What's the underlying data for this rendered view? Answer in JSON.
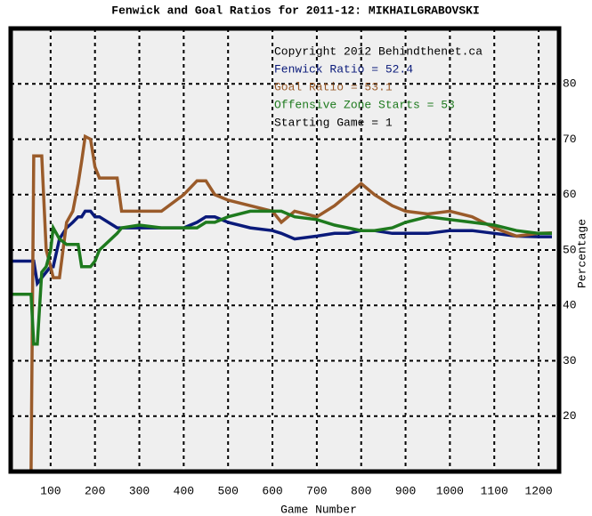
{
  "chart_data": {
    "type": "line",
    "title": "Fenwick and Goal Ratios for 2011-12: MIKHAILGRABOVSKI",
    "x_label": "Game Number",
    "y_label": "Percentage",
    "annotations": [
      "Copyright 2012 Behindthenet.ca",
      "Starting Game = 1"
    ],
    "x": [
      10,
      56,
      62,
      70,
      80,
      90,
      100,
      106,
      120,
      136,
      150,
      162,
      170,
      178,
      190,
      200,
      210,
      250,
      260,
      300,
      350,
      400,
      430,
      450,
      470,
      500,
      550,
      600,
      620,
      650,
      700,
      740,
      770,
      800,
      830,
      870,
      900,
      950,
      1000,
      1050,
      1100,
      1150,
      1200,
      1230
    ],
    "series": [
      {
        "name": "Fenwick Ratio = 52.4",
        "color": "#0a1a7a",
        "values": [
          48,
          48,
          48,
          44,
          45,
          46,
          47,
          47,
          52,
          54,
          55,
          56,
          56,
          57,
          57,
          56,
          56,
          54,
          54,
          54,
          54,
          54,
          55,
          56,
          56,
          55,
          54,
          53.5,
          53,
          52,
          52.5,
          53,
          53,
          53.5,
          53.5,
          53,
          53,
          53,
          53.5,
          53.5,
          53,
          52.5,
          52.4,
          52.4
        ]
      },
      {
        "name": "Goal Ratio = 53.1",
        "color": "#9a5b2a",
        "values": [
          null,
          10,
          67,
          67,
          67,
          50,
          47,
          45,
          45,
          55,
          57,
          62,
          66,
          70.5,
          70,
          65,
          63,
          63,
          57,
          57,
          57,
          60,
          62.5,
          62.5,
          60,
          59,
          58,
          57,
          55,
          57,
          56,
          58,
          60,
          62,
          60,
          58,
          57,
          56.5,
          57,
          56,
          54,
          52.5,
          53,
          53.1
        ]
      },
      {
        "name": "Offensive Zone Starts = 53",
        "color": "#1e7a1e",
        "values": [
          42,
          42,
          33,
          33,
          46,
          47,
          50,
          54,
          52,
          51,
          51,
          51,
          47,
          47,
          47,
          48,
          50,
          53,
          54,
          54.5,
          54,
          54,
          54,
          55,
          55,
          56,
          57,
          57,
          57,
          56,
          55.5,
          54.5,
          54,
          53.5,
          53.5,
          54,
          55,
          56,
          55.5,
          55,
          54.5,
          53.5,
          53,
          53
        ]
      }
    ],
    "xlim": [
      10,
      1246
    ],
    "ylim": [
      10,
      90
    ],
    "xticks": [
      100,
      200,
      300,
      400,
      500,
      600,
      700,
      800,
      900,
      1000,
      1100,
      1200
    ],
    "yticks": [
      20,
      30,
      40,
      50,
      60,
      70,
      80
    ],
    "grid": true
  }
}
